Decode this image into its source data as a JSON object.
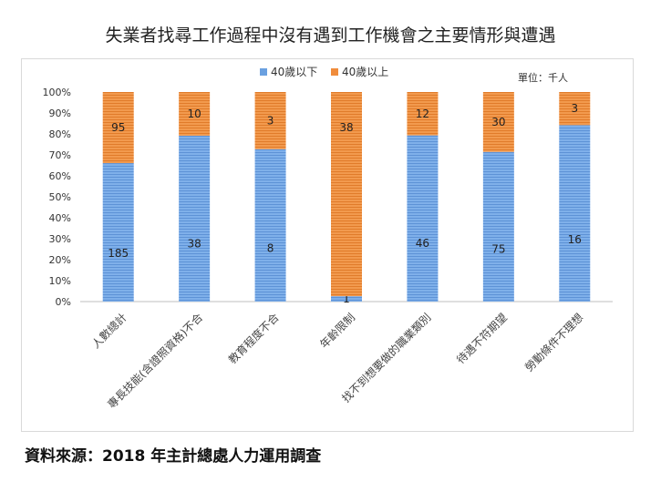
{
  "chart_data": {
    "type": "bar",
    "stacked": "percent",
    "title": "失業者找尋工作過程中沒有遇到工作機會之主要情形與遭遇",
    "unit_label": "單位：千人",
    "categories": [
      "人數總計",
      "專長技能(含證照資格)不合",
      "教育程度不合",
      "年齡限制",
      "找不到想要做的職業類別",
      "待遇不符期望",
      "勞動條件不理想"
    ],
    "series": [
      {
        "name": "40歲以下",
        "color": "#6aa0e0",
        "values": [
          185,
          38,
          8,
          1,
          46,
          75,
          16
        ]
      },
      {
        "name": "40歲以上",
        "color": "#f08c3c",
        "values": [
          95,
          10,
          3,
          38,
          12,
          30,
          3
        ]
      }
    ],
    "yticks": [
      "0%",
      "10%",
      "20%",
      "30%",
      "40%",
      "50%",
      "60%",
      "70%",
      "80%",
      "90%",
      "100%"
    ],
    "ylim": [
      0,
      100
    ],
    "legend_position": "top-center",
    "grid": false
  },
  "source_note": "資料來源：2018 年主計總處人力運用調查"
}
